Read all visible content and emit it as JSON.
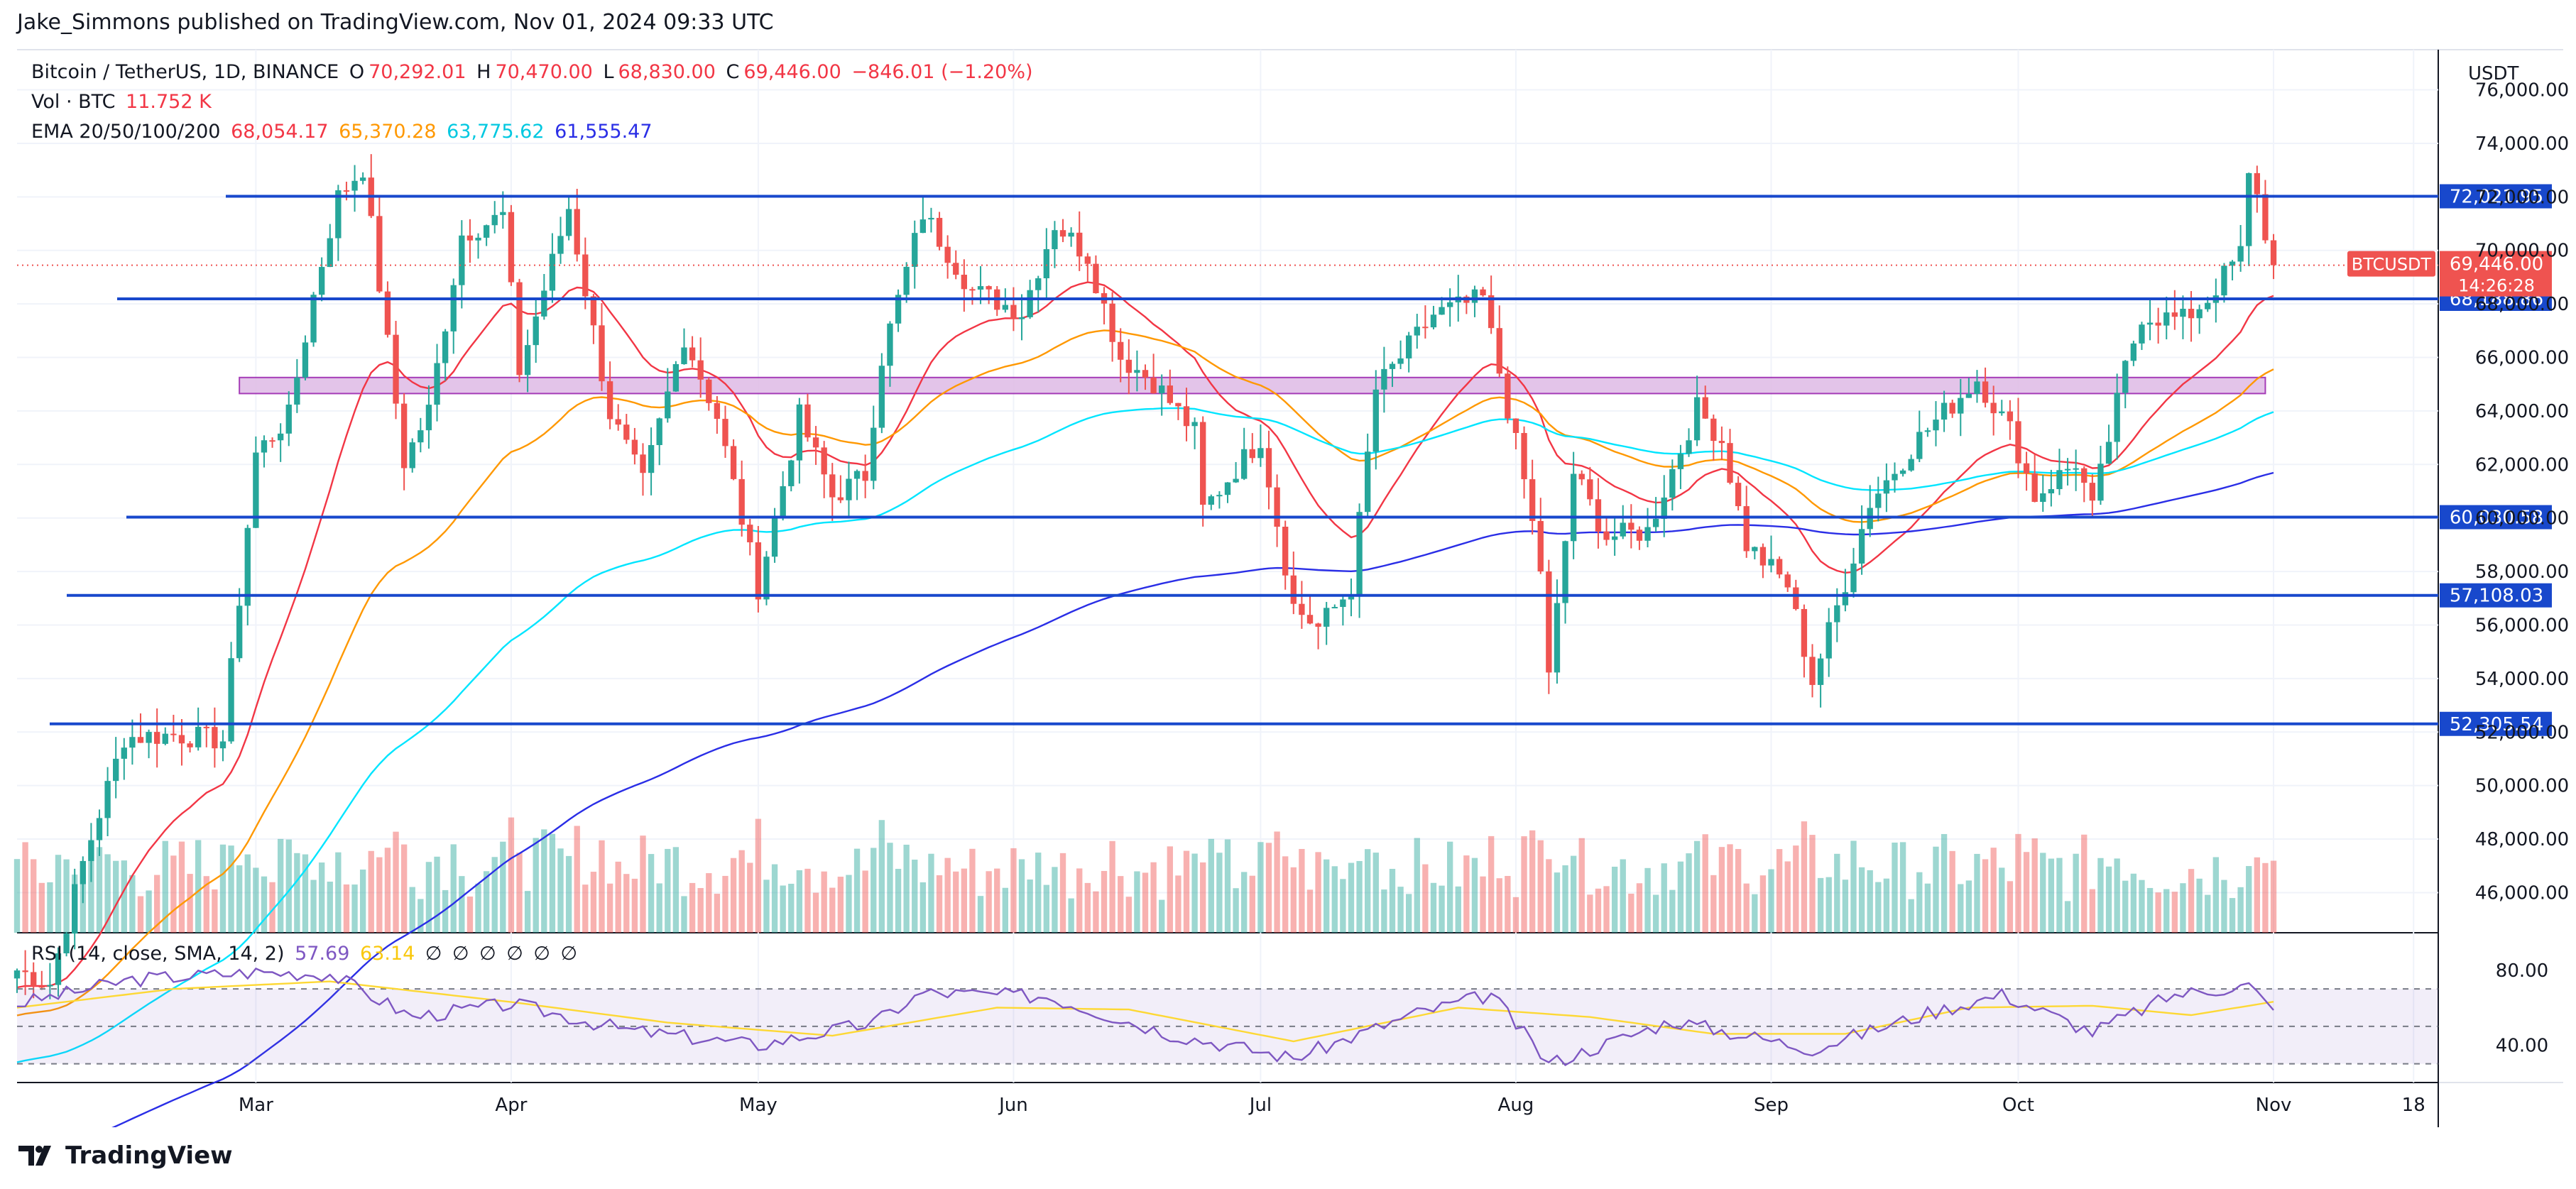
{
  "publisher": "Jake_Simmons published on TradingView.com, Nov 01, 2024 09:33 UTC",
  "legend": {
    "symbol": "Bitcoin / TetherUS, 1D, BINANCE",
    "o_label": "O",
    "o": "70,292.01",
    "h_label": "H",
    "h": "70,470.00",
    "l_label": "L",
    "l": "68,830.00",
    "c_label": "C",
    "c": "69,446.00",
    "change": "−846.01 (−1.20%)",
    "vol_label": "Vol · BTC",
    "vol": "11.752 K",
    "ema_label": "EMA 20/50/100/200",
    "ema20": "68,054.17",
    "ema50": "65,370.28",
    "ema100": "63,775.62",
    "ema200": "61,555.47"
  },
  "rsi_legend": {
    "label": "RSI (14, close, SMA, 14, 2)",
    "rsi": "57.69",
    "sma": "63.14",
    "empty": [
      "∅",
      "∅",
      "∅",
      "∅",
      "∅",
      "∅"
    ]
  },
  "footer": {
    "brand": "TradingView"
  },
  "colors": {
    "up": "#26a69a",
    "down": "#ef5350",
    "ema20": "#f23645",
    "ema50": "#ff9800",
    "ema100": "#00e5ff",
    "ema200": "#2a2ee6",
    "level": "#1848cc",
    "rsi": "#7e57c2",
    "rsi_sma": "#fdd835",
    "zone_fill": "#e1bee7",
    "zone_border": "#9c27b0"
  },
  "chart_data": {
    "type": "candlestick",
    "currency": "USDT",
    "y_ticks": [
      "76,000.00",
      "74,000.00",
      "72,000.00",
      "70,000.00",
      "68,000.00",
      "66,000.00",
      "64,000.00",
      "62,000.00",
      "60,000.00",
      "58,000.00",
      "56,000.00",
      "54,000.00",
      "52,000.00",
      "50,000.00",
      "48,000.00",
      "46,000.00"
    ],
    "ylim": [
      44500,
      77500
    ],
    "x_ticks": [
      "Mar",
      "Apr",
      "May",
      "Jun",
      "Jul",
      "Aug",
      "Sep",
      "Oct",
      "Nov",
      "18"
    ],
    "x_tick_dates": [
      "2024-03-01",
      "2024-04-01",
      "2024-05-01",
      "2024-06-01",
      "2024-07-01",
      "2024-08-01",
      "2024-09-01",
      "2024-10-01",
      "2024-11-01",
      "2024-11-18"
    ],
    "x_range": [
      "2024-02-01",
      "2024-11-21"
    ],
    "levels": [
      {
        "value": 72021.95,
        "label": "72,021.95"
      },
      {
        "value": 68188.86,
        "label": "68,188.86"
      },
      {
        "value": 60030.58,
        "label": "60,030.58"
      },
      {
        "value": 57108.03,
        "label": "57,108.03"
      },
      {
        "value": 52305.54,
        "label": "52,305.54"
      }
    ],
    "zone": {
      "low": 64650,
      "high": 65250,
      "start": "2024-02-28",
      "end": "2024-10-31"
    },
    "last_price": {
      "symbol": "BTCUSDT",
      "price": "69,446.00",
      "countdown": "14:26:28",
      "value": 69446
    },
    "price_path": [
      [
        "2024-02-01",
        43100
      ],
      [
        "2024-02-05",
        42600
      ],
      [
        "2024-02-09",
        47100
      ],
      [
        "2024-02-14",
        51800
      ],
      [
        "2024-02-20",
        51900
      ],
      [
        "2024-02-26",
        51700
      ],
      [
        "2024-02-28",
        57000
      ],
      [
        "2024-03-01",
        62400
      ],
      [
        "2024-03-05",
        63800
      ],
      [
        "2024-03-08",
        68300
      ],
      [
        "2024-03-11",
        72000
      ],
      [
        "2024-03-14",
        73100
      ],
      [
        "2024-03-19",
        62100
      ],
      [
        "2024-03-22",
        64000
      ],
      [
        "2024-03-26",
        70600
      ],
      [
        "2024-03-31",
        71300
      ],
      [
        "2024-04-02",
        65500
      ],
      [
        "2024-04-08",
        71600
      ],
      [
        "2024-04-13",
        63900
      ],
      [
        "2024-04-17",
        61300
      ],
      [
        "2024-04-22",
        66800
      ],
      [
        "2024-04-26",
        63800
      ],
      [
        "2024-05-01",
        57400
      ],
      [
        "2024-05-06",
        63800
      ],
      [
        "2024-05-10",
        60800
      ],
      [
        "2024-05-14",
        61600
      ],
      [
        "2024-05-16",
        66000
      ],
      [
        "2024-05-21",
        71400
      ],
      [
        "2024-05-27",
        68500
      ],
      [
        "2024-06-02",
        67700
      ],
      [
        "2024-06-06",
        71000
      ],
      [
        "2024-06-10",
        69800
      ],
      [
        "2024-06-14",
        66000
      ],
      [
        "2024-06-18",
        65100
      ],
      [
        "2024-06-23",
        63200
      ],
      [
        "2024-06-24",
        60300
      ],
      [
        "2024-07-01",
        63000
      ],
      [
        "2024-07-05",
        56700
      ],
      [
        "2024-07-08",
        55900
      ],
      [
        "2024-07-12",
        57400
      ],
      [
        "2024-07-15",
        64800
      ],
      [
        "2024-07-22",
        67600
      ],
      [
        "2024-07-28",
        68200
      ],
      [
        "2024-07-29",
        66800
      ],
      [
        "2024-08-02",
        61400
      ],
      [
        "2024-08-04",
        58100
      ],
      [
        "2024-08-05",
        54000
      ],
      [
        "2024-08-08",
        61700
      ],
      [
        "2024-08-12",
        59300
      ],
      [
        "2024-08-17",
        59500
      ],
      [
        "2024-08-23",
        64100
      ],
      [
        "2024-08-26",
        62900
      ],
      [
        "2024-08-29",
        59000
      ],
      [
        "2024-09-03",
        57500
      ],
      [
        "2024-09-06",
        53900
      ],
      [
        "2024-09-10",
        57600
      ],
      [
        "2024-09-13",
        60600
      ],
      [
        "2024-09-19",
        63000
      ],
      [
        "2024-09-26",
        65200
      ],
      [
        "2024-09-30",
        63300
      ],
      [
        "2024-10-03",
        60800
      ],
      [
        "2024-10-08",
        62100
      ],
      [
        "2024-10-10",
        60300
      ],
      [
        "2024-10-14",
        65600
      ],
      [
        "2024-10-16",
        67600
      ],
      [
        "2024-10-21",
        67400
      ],
      [
        "2024-10-24",
        68200
      ],
      [
        "2024-10-28",
        69900
      ],
      [
        "2024-10-29",
        72700
      ],
      [
        "2024-10-30",
        72300
      ],
      [
        "2024-10-31",
        70300
      ],
      [
        "2024-11-01",
        69446
      ]
    ],
    "rsi": {
      "ylim": [
        20,
        100
      ],
      "y_ticks": [
        "80.00",
        "40.00"
      ],
      "bands": [
        70,
        50,
        30
      ],
      "rsi_path": [
        [
          "2024-02-01",
          62
        ],
        [
          "2024-02-15",
          75
        ],
        [
          "2024-03-01",
          79
        ],
        [
          "2024-03-10",
          78
        ],
        [
          "2024-03-20",
          55
        ],
        [
          "2024-04-01",
          62
        ],
        [
          "2024-04-15",
          48
        ],
        [
          "2024-05-01",
          40
        ],
        [
          "2024-05-15",
          52
        ],
        [
          "2024-05-21",
          68
        ],
        [
          "2024-06-05",
          66
        ],
        [
          "2024-06-20",
          46
        ],
        [
          "2024-07-05",
          33
        ],
        [
          "2024-07-20",
          57
        ],
        [
          "2024-07-29",
          67
        ],
        [
          "2024-08-05",
          30
        ],
        [
          "2024-08-20",
          53
        ],
        [
          "2024-09-06",
          38
        ],
        [
          "2024-09-20",
          57
        ],
        [
          "2024-09-29",
          67
        ],
        [
          "2024-10-10",
          47
        ],
        [
          "2024-10-20",
          67
        ],
        [
          "2024-10-29",
          72
        ],
        [
          "2024-11-01",
          57.69
        ]
      ],
      "sma_path": [
        [
          "2024-02-01",
          60
        ],
        [
          "2024-02-20",
          70
        ],
        [
          "2024-03-10",
          74
        ],
        [
          "2024-04-01",
          63
        ],
        [
          "2024-04-20",
          52
        ],
        [
          "2024-05-10",
          45
        ],
        [
          "2024-05-30",
          60
        ],
        [
          "2024-06-15",
          59
        ],
        [
          "2024-07-05",
          42
        ],
        [
          "2024-07-25",
          60
        ],
        [
          "2024-08-10",
          55
        ],
        [
          "2024-08-25",
          46
        ],
        [
          "2024-09-10",
          46
        ],
        [
          "2024-09-25",
          60
        ],
        [
          "2024-10-10",
          61
        ],
        [
          "2024-10-22",
          56
        ],
        [
          "2024-11-01",
          63.14
        ]
      ]
    }
  }
}
